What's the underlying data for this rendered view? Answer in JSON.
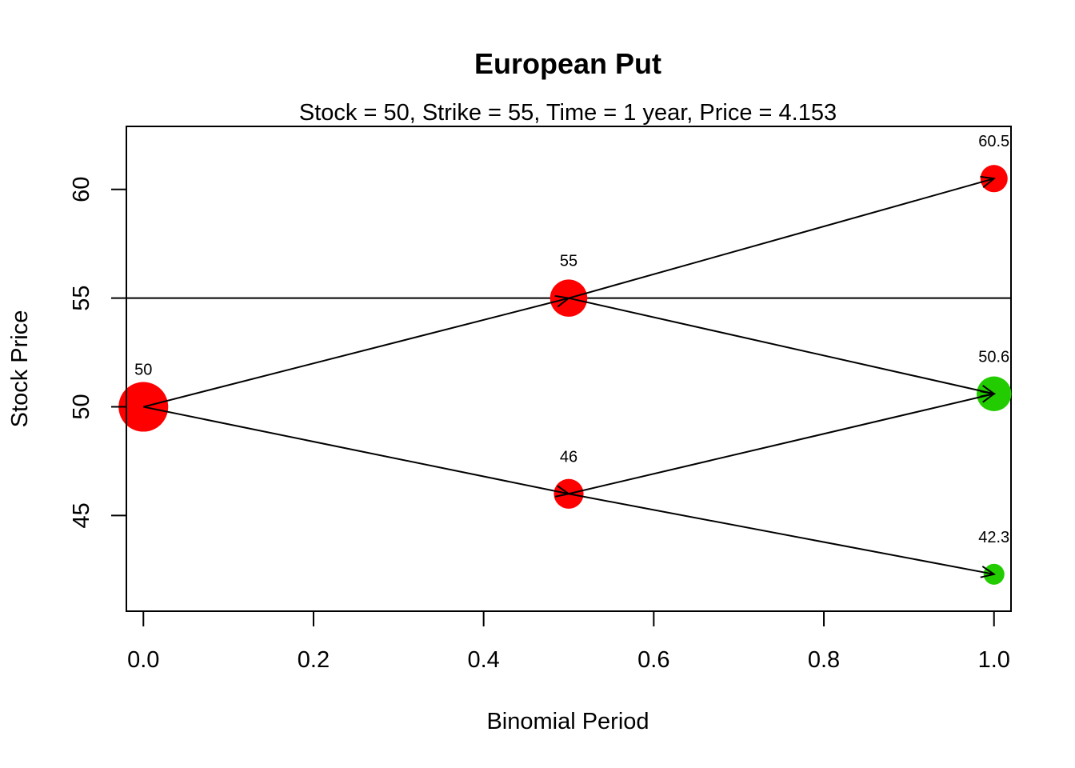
{
  "chart_data": {
    "type": "scatter",
    "title": "European Put",
    "subtitle": "Stock = 50, Strike = 55, Time = 1 year, Price = 4.153",
    "xlabel": "Binomial Period",
    "ylabel": "Stock Price",
    "xlim": [
      -0.02,
      1.02
    ],
    "ylim": [
      40.6,
      62.9
    ],
    "xticks": [
      "0.0",
      "0.2",
      "0.4",
      "0.6",
      "0.8",
      "1.0"
    ],
    "yticks": [
      "45",
      "50",
      "55",
      "60"
    ],
    "grid": false,
    "legend": "none",
    "strike_line": 55,
    "colors": {
      "out_of_money": "#ff0000",
      "in_the_money": "#22cc00",
      "line": "#000000"
    },
    "nodes": [
      {
        "x": 0.0,
        "y": 50.0,
        "label": "50",
        "status": "red",
        "weight": 1.0
      },
      {
        "x": 0.5,
        "y": 55.0,
        "label": "55",
        "status": "red",
        "weight": 0.75
      },
      {
        "x": 0.5,
        "y": 46.0,
        "label": "46",
        "status": "red",
        "weight": 0.6
      },
      {
        "x": 1.0,
        "y": 60.5,
        "label": "60.5",
        "status": "red",
        "weight": 0.55
      },
      {
        "x": 1.0,
        "y": 50.6,
        "label": "50.6",
        "status": "green",
        "weight": 0.7
      },
      {
        "x": 1.0,
        "y": 42.3,
        "label": "42.3",
        "status": "green",
        "weight": 0.42
      }
    ],
    "edges": [
      {
        "from": 0,
        "to": 1
      },
      {
        "from": 0,
        "to": 2
      },
      {
        "from": 1,
        "to": 3
      },
      {
        "from": 1,
        "to": 4
      },
      {
        "from": 2,
        "to": 4
      },
      {
        "from": 2,
        "to": 5
      }
    ]
  }
}
